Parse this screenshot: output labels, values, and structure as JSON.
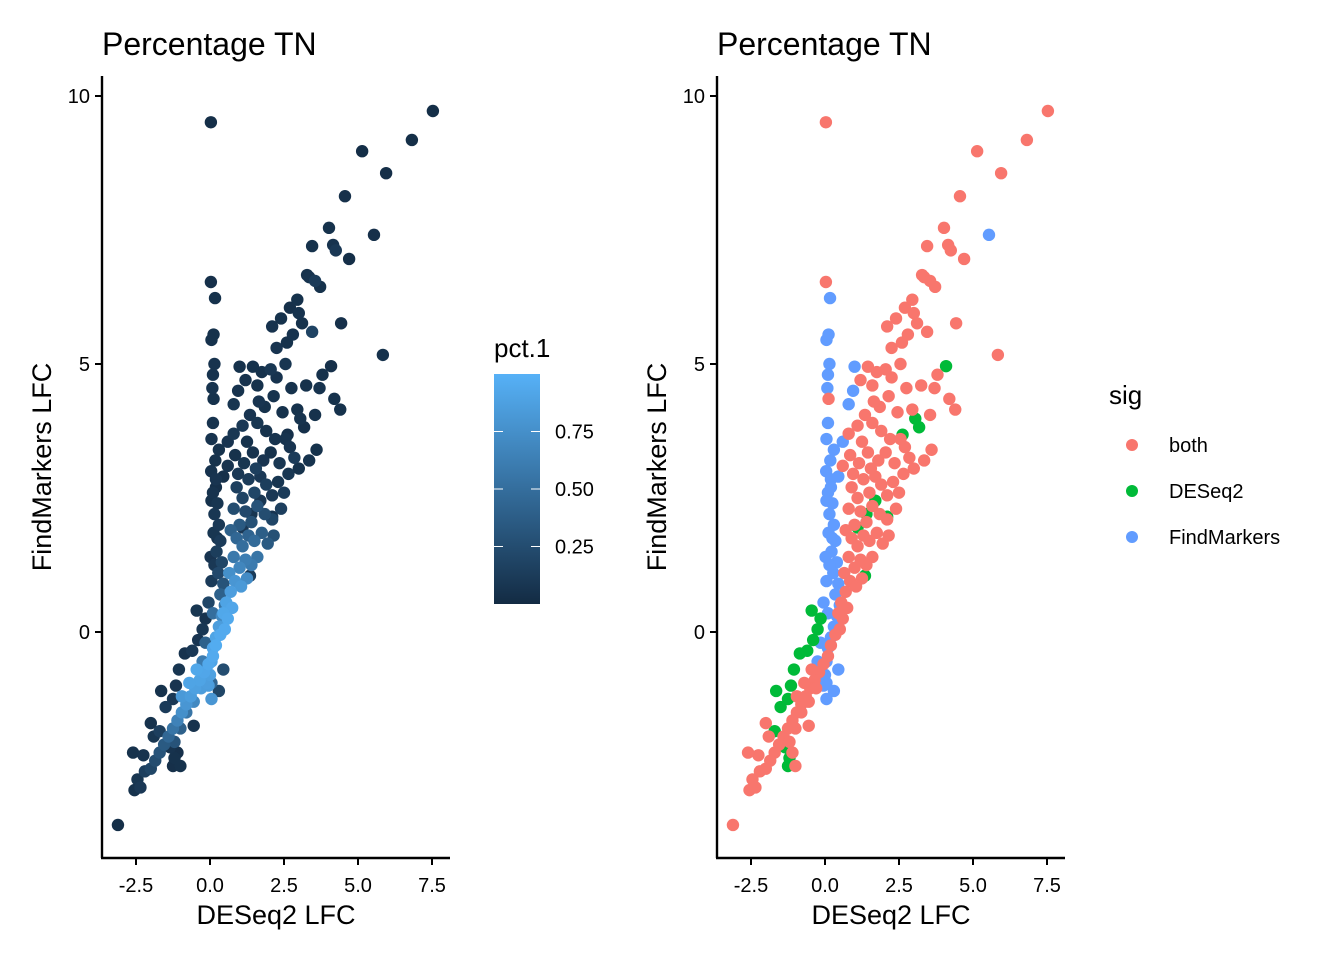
{
  "chart_data": [
    {
      "type": "scatter",
      "title": "Percentage TN",
      "xlabel": "DESeq2 LFC",
      "ylabel": "FindMarkers LFC",
      "xlim": [
        -3.6,
        8.2
      ],
      "ylim": [
        -4.2,
        10.3
      ],
      "xticks": [
        -2.5,
        0.0,
        2.5,
        5.0,
        7.5
      ],
      "xtick_labels": [
        "-2.5",
        "0.0",
        "2.5",
        "5.0",
        "7.5"
      ],
      "yticks": [
        0,
        5,
        10
      ],
      "ytick_labels": [
        "0",
        "5",
        "10"
      ],
      "grid": false,
      "color_by": "pct.1",
      "legend": {
        "type": "colorbar",
        "title": "pct.1",
        "placement": "right",
        "range": [
          0.0,
          1.0
        ],
        "low_color": "#132B43",
        "high_color": "#56B1F7",
        "ticks": [
          0.25,
          0.5,
          0.75
        ],
        "tick_labels": [
          "0.25",
          "0.50",
          "0.75"
        ]
      }
    },
    {
      "type": "scatter",
      "title": "Percentage TN",
      "xlabel": "DESeq2 LFC",
      "ylabel": "FindMarkers LFC",
      "xlim": [
        -3.6,
        8.2
      ],
      "ylim": [
        -4.2,
        10.3
      ],
      "xticks": [
        -2.5,
        0.0,
        2.5,
        5.0,
        7.5
      ],
      "xtick_labels": [
        "-2.5",
        "0.0",
        "2.5",
        "5.0",
        "7.5"
      ],
      "yticks": [
        0,
        5,
        10
      ],
      "ytick_labels": [
        "0",
        "5",
        "10"
      ],
      "grid": false,
      "color_by": "sig",
      "legend": {
        "type": "categorical",
        "title": "sig",
        "placement": "right",
        "entries": [
          {
            "key": "b",
            "label": "both",
            "color": "#F8766D"
          },
          {
            "key": "d",
            "label": "DESeq2",
            "color": "#00BA38"
          },
          {
            "key": "f",
            "label": "FindMarkers",
            "color": "#619CFF"
          }
        ]
      }
    }
  ],
  "points_fields": [
    "x",
    "y",
    "pct1",
    "sig"
  ],
  "points": [
    [
      7.53,
      9.72,
      0.02,
      "b"
    ],
    [
      6.82,
      9.18,
      0.03,
      "b"
    ],
    [
      5.95,
      8.56,
      0.03,
      "b"
    ],
    [
      5.14,
      8.97,
      0.02,
      "b"
    ],
    [
      4.56,
      8.13,
      0.04,
      "b"
    ],
    [
      5.54,
      7.41,
      0.04,
      "f"
    ],
    [
      4.7,
      6.96,
      0.03,
      "b"
    ],
    [
      4.02,
      7.54,
      0.05,
      "b"
    ],
    [
      4.16,
      7.22,
      0.06,
      "b"
    ],
    [
      4.25,
      7.12,
      0.1,
      "b"
    ],
    [
      3.45,
      7.2,
      0.05,
      "b"
    ],
    [
      3.28,
      6.66,
      0.05,
      "b"
    ],
    [
      3.35,
      6.62,
      0.06,
      "b"
    ],
    [
      3.55,
      6.55,
      0.12,
      "b"
    ],
    [
      3.72,
      6.44,
      0.05,
      "b"
    ],
    [
      4.43,
      5.76,
      0.04,
      "b"
    ],
    [
      5.84,
      5.17,
      0.05,
      "b"
    ],
    [
      3.11,
      5.76,
      0.05,
      "b"
    ],
    [
      2.7,
      6.05,
      0.04,
      "b"
    ],
    [
      2.95,
      6.2,
      0.05,
      "b"
    ],
    [
      3.0,
      5.95,
      0.06,
      "b"
    ],
    [
      2.6,
      5.4,
      0.05,
      "b"
    ],
    [
      2.8,
      5.55,
      0.06,
      "b"
    ],
    [
      3.45,
      5.6,
      0.18,
      "b"
    ],
    [
      2.1,
      5.7,
      0.06,
      "b"
    ],
    [
      2.4,
      5.85,
      0.05,
      "b"
    ],
    [
      2.25,
      5.3,
      0.07,
      "b"
    ],
    [
      2.55,
      5.0,
      0.08,
      "b"
    ],
    [
      1.75,
      4.85,
      0.05,
      "b"
    ],
    [
      2.05,
      4.9,
      0.09,
      "b"
    ],
    [
      2.25,
      4.75,
      0.06,
      "b"
    ],
    [
      1.45,
      4.95,
      0.05,
      "b"
    ],
    [
      0.03,
      9.51,
      0.03,
      "b"
    ],
    [
      0.03,
      6.53,
      0.04,
      "b"
    ],
    [
      0.17,
      6.23,
      0.05,
      "f"
    ],
    [
      0.12,
      5.55,
      0.05,
      "f"
    ],
    [
      0.05,
      5.45,
      0.05,
      "f"
    ],
    [
      0.15,
      5.0,
      0.06,
      "f"
    ],
    [
      0.1,
      4.8,
      0.06,
      "f"
    ],
    [
      0.08,
      4.55,
      0.06,
      "f"
    ],
    [
      0.12,
      4.35,
      0.05,
      "b"
    ],
    [
      1.0,
      4.95,
      0.05,
      "f"
    ],
    [
      0.95,
      4.5,
      0.06,
      "f"
    ],
    [
      0.8,
      4.25,
      0.08,
      "f"
    ],
    [
      1.2,
      4.7,
      0.06,
      "b"
    ],
    [
      1.6,
      4.6,
      0.05,
      "b"
    ],
    [
      3.8,
      4.8,
      0.05,
      "b"
    ],
    [
      4.09,
      4.96,
      0.04,
      "d"
    ],
    [
      3.7,
      4.55,
      0.06,
      "b"
    ],
    [
      4.2,
      4.35,
      0.05,
      "b"
    ],
    [
      4.4,
      4.15,
      0.05,
      "b"
    ],
    [
      3.55,
      4.05,
      0.05,
      "b"
    ],
    [
      3.18,
      3.82,
      0.04,
      "d"
    ],
    [
      3.05,
      3.98,
      0.06,
      "d"
    ],
    [
      2.95,
      4.15,
      0.05,
      "b"
    ],
    [
      2.62,
      3.68,
      0.04,
      "d"
    ],
    [
      2.55,
      3.6,
      0.06,
      "b"
    ],
    [
      3.6,
      3.4,
      0.05,
      "b"
    ],
    [
      3.35,
      3.2,
      0.06,
      "b"
    ],
    [
      3.0,
      3.05,
      0.05,
      "b"
    ],
    [
      2.85,
      3.25,
      0.12,
      "b"
    ],
    [
      2.7,
      3.45,
      0.07,
      "b"
    ],
    [
      2.2,
      3.6,
      0.06,
      "b"
    ],
    [
      1.9,
      3.75,
      0.05,
      "b"
    ],
    [
      1.6,
      3.9,
      0.08,
      "b"
    ],
    [
      1.35,
      4.05,
      0.07,
      "b"
    ],
    [
      1.1,
      3.85,
      0.1,
      "b"
    ],
    [
      0.8,
      3.7,
      0.09,
      "b"
    ],
    [
      0.6,
      3.55,
      0.07,
      "f"
    ],
    [
      0.3,
      3.4,
      0.05,
      "f"
    ],
    [
      0.1,
      3.9,
      0.06,
      "f"
    ],
    [
      0.05,
      3.6,
      0.06,
      "f"
    ],
    [
      0.18,
      3.2,
      0.05,
      "f"
    ],
    [
      0.04,
      3.0,
      0.06,
      "f"
    ],
    [
      0.2,
      2.85,
      0.07,
      "f"
    ],
    [
      0.1,
      2.6,
      0.06,
      "f"
    ],
    [
      0.25,
      2.4,
      0.08,
      "f"
    ],
    [
      0.15,
      2.2,
      0.09,
      "f"
    ],
    [
      0.3,
      2.0,
      0.1,
      "f"
    ],
    [
      0.12,
      1.85,
      0.08,
      "f"
    ],
    [
      0.35,
      1.7,
      0.12,
      "f"
    ],
    [
      0.22,
      1.5,
      0.14,
      "f"
    ],
    [
      0.4,
      1.3,
      0.2,
      "f"
    ],
    [
      0.28,
      1.1,
      0.22,
      "f"
    ],
    [
      0.45,
      0.9,
      0.3,
      "f"
    ],
    [
      0.35,
      0.7,
      0.4,
      "f"
    ],
    [
      0.5,
      0.5,
      0.55,
      "f"
    ],
    [
      0.4,
      0.3,
      0.7,
      "f"
    ],
    [
      0.3,
      0.1,
      0.85,
      "f"
    ],
    [
      0.2,
      -0.1,
      0.9,
      "f"
    ],
    [
      0.1,
      -0.3,
      0.92,
      "f"
    ],
    [
      0.05,
      -0.55,
      0.9,
      "f"
    ],
    [
      0.0,
      -0.8,
      0.88,
      "f"
    ],
    [
      -0.05,
      -1.0,
      0.85,
      "f"
    ],
    [
      0.05,
      -1.25,
      0.8,
      "f"
    ],
    [
      -0.1,
      -0.95,
      0.86,
      "f"
    ],
    [
      0.9,
      2.7,
      0.15,
      "b"
    ],
    [
      1.1,
      2.5,
      0.18,
      "b"
    ],
    [
      1.3,
      2.85,
      0.12,
      "b"
    ],
    [
      1.5,
      2.6,
      0.2,
      "b"
    ],
    [
      1.7,
      2.9,
      0.1,
      "b"
    ],
    [
      1.9,
      2.75,
      0.14,
      "b"
    ],
    [
      2.1,
      2.55,
      0.1,
      "b"
    ],
    [
      2.3,
      2.8,
      0.08,
      "b"
    ],
    [
      2.5,
      2.6,
      0.12,
      "b"
    ],
    [
      2.65,
      2.95,
      0.09,
      "b"
    ],
    [
      2.4,
      2.3,
      0.15,
      "b"
    ],
    [
      2.1,
      2.1,
      0.2,
      "b"
    ],
    [
      1.85,
      2.2,
      0.25,
      "b"
    ],
    [
      1.6,
      2.35,
      0.3,
      "b"
    ],
    [
      1.4,
      2.05,
      0.28,
      "b"
    ],
    [
      1.2,
      2.25,
      0.22,
      "b"
    ],
    [
      1.0,
      2.0,
      0.35,
      "b"
    ],
    [
      0.8,
      2.3,
      0.25,
      "b"
    ],
    [
      0.7,
      1.9,
      0.4,
      "b"
    ],
    [
      0.9,
      1.75,
      0.45,
      "b"
    ],
    [
      1.1,
      1.6,
      0.5,
      "b"
    ],
    [
      1.3,
      1.8,
      0.42,
      "b"
    ],
    [
      1.5,
      1.7,
      0.48,
      "b"
    ],
    [
      1.75,
      1.85,
      0.38,
      "b"
    ],
    [
      1.95,
      1.65,
      0.35,
      "b"
    ],
    [
      2.15,
      1.8,
      0.28,
      "b"
    ],
    [
      1.6,
      1.4,
      0.55,
      "b"
    ],
    [
      1.4,
      1.25,
      0.6,
      "b"
    ],
    [
      1.2,
      1.35,
      0.62,
      "b"
    ],
    [
      1.0,
      1.2,
      0.68,
      "b"
    ],
    [
      0.8,
      1.4,
      0.58,
      "b"
    ],
    [
      0.65,
      1.1,
      0.75,
      "b"
    ],
    [
      0.85,
      0.95,
      0.8,
      "b"
    ],
    [
      1.05,
      0.85,
      0.82,
      "b"
    ],
    [
      1.25,
      1.0,
      0.72,
      "b"
    ],
    [
      0.7,
      0.75,
      0.86,
      "b"
    ],
    [
      0.55,
      0.55,
      0.9,
      "b"
    ],
    [
      0.75,
      0.45,
      0.92,
      "b"
    ],
    [
      0.6,
      0.25,
      0.94,
      "b"
    ],
    [
      0.45,
      0.35,
      0.93,
      "b"
    ],
    [
      0.35,
      -0.05,
      0.95,
      "b"
    ],
    [
      0.5,
      0.05,
      0.95,
      "b"
    ],
    [
      0.2,
      -0.25,
      0.96,
      "b"
    ],
    [
      0.1,
      -0.45,
      0.95,
      "b"
    ],
    [
      -0.05,
      -0.6,
      0.94,
      "b"
    ],
    [
      -0.2,
      -0.75,
      0.92,
      "b"
    ],
    [
      -0.35,
      -0.9,
      0.9,
      "b"
    ],
    [
      -0.5,
      -1.05,
      0.88,
      "b"
    ],
    [
      -0.65,
      -1.2,
      0.85,
      "b"
    ],
    [
      -0.8,
      -1.35,
      0.8,
      "b"
    ],
    [
      -0.95,
      -1.5,
      0.75,
      "b"
    ],
    [
      -1.1,
      -1.65,
      0.65,
      "b"
    ],
    [
      -1.25,
      -1.8,
      0.55,
      "b"
    ],
    [
      -1.4,
      -1.95,
      0.45,
      "b"
    ],
    [
      -1.55,
      -2.1,
      0.35,
      "b"
    ],
    [
      -1.7,
      -2.25,
      0.3,
      "b"
    ],
    [
      -1.85,
      -2.4,
      0.25,
      "b"
    ],
    [
      -2.0,
      -2.55,
      0.2,
      "b"
    ],
    [
      -2.2,
      -2.6,
      0.15,
      "b"
    ],
    [
      -2.45,
      -2.75,
      0.08,
      "b"
    ],
    [
      -2.55,
      -2.95,
      0.05,
      "b"
    ],
    [
      -2.35,
      -2.9,
      0.1,
      "b"
    ],
    [
      -2.25,
      -2.3,
      0.06,
      "b"
    ],
    [
      -1.9,
      -1.95,
      0.08,
      "b"
    ],
    [
      -3.11,
      -3.6,
      0.03,
      "b"
    ],
    [
      -2.6,
      -2.25,
      0.05,
      "b"
    ],
    [
      -0.6,
      -0.35,
      0.1,
      "d"
    ],
    [
      -0.85,
      -0.4,
      0.06,
      "d"
    ],
    [
      -1.05,
      -0.7,
      0.08,
      "d"
    ],
    [
      -1.15,
      -1.0,
      0.07,
      "d"
    ],
    [
      -1.25,
      -1.25,
      0.1,
      "d"
    ],
    [
      -1.65,
      -1.1,
      0.05,
      "d"
    ],
    [
      -1.5,
      -1.4,
      0.12,
      "d"
    ],
    [
      -1.7,
      -1.85,
      0.15,
      "d"
    ],
    [
      -1.35,
      -2.15,
      0.06,
      "d"
    ],
    [
      -1.2,
      -2.35,
      0.05,
      "d"
    ],
    [
      -1.25,
      -2.5,
      0.04,
      "d"
    ],
    [
      -0.4,
      -0.15,
      0.07,
      "d"
    ],
    [
      -0.25,
      0.05,
      0.09,
      "d"
    ],
    [
      -0.15,
      0.25,
      0.06,
      "d"
    ],
    [
      -0.45,
      0.4,
      0.08,
      "d"
    ],
    [
      1.1,
      1.95,
      0.1,
      "d"
    ],
    [
      1.4,
      2.2,
      0.08,
      "d"
    ],
    [
      1.7,
      2.45,
      0.09,
      "d"
    ],
    [
      2.1,
      2.15,
      0.07,
      "d"
    ],
    [
      1.35,
      1.05,
      0.12,
      "d"
    ],
    [
      0.45,
      2.9,
      0.04,
      "f"
    ],
    [
      0.2,
      2.7,
      0.04,
      "f"
    ],
    [
      0.05,
      2.45,
      0.05,
      "f"
    ],
    [
      0.25,
      1.75,
      0.06,
      "f"
    ],
    [
      0.02,
      1.4,
      0.07,
      "f"
    ],
    [
      0.15,
      1.25,
      0.1,
      "f"
    ],
    [
      0.05,
      0.95,
      0.12,
      "f"
    ],
    [
      -0.05,
      0.55,
      0.2,
      "f"
    ],
    [
      0.1,
      0.35,
      0.5,
      "f"
    ],
    [
      -0.15,
      -0.2,
      0.4,
      "f"
    ],
    [
      -0.25,
      -0.55,
      0.6,
      "f"
    ],
    [
      0.45,
      -0.7,
      0.25,
      "f"
    ],
    [
      0.3,
      -1.1,
      0.2,
      "f"
    ],
    [
      0.05,
      -0.95,
      0.45,
      "f"
    ],
    [
      0.6,
      3.1,
      0.06,
      "b"
    ],
    [
      0.85,
      3.3,
      0.05,
      "b"
    ],
    [
      1.15,
      3.15,
      0.08,
      "b"
    ],
    [
      1.45,
      3.35,
      0.06,
      "b"
    ],
    [
      1.8,
      3.2,
      0.07,
      "b"
    ],
    [
      2.05,
      3.35,
      0.05,
      "b"
    ],
    [
      2.35,
      3.15,
      0.09,
      "b"
    ],
    [
      1.25,
      3.55,
      0.05,
      "b"
    ],
    [
      1.55,
      3.05,
      0.15,
      "b"
    ],
    [
      0.95,
      2.95,
      0.1,
      "b"
    ],
    [
      1.85,
      4.2,
      0.05,
      "b"
    ],
    [
      2.15,
      4.4,
      0.06,
      "b"
    ],
    [
      2.45,
      4.1,
      0.05,
      "b"
    ],
    [
      1.65,
      4.3,
      0.07,
      "b"
    ],
    [
      2.75,
      4.55,
      0.05,
      "b"
    ],
    [
      3.25,
      4.6,
      0.05,
      "b"
    ],
    [
      -0.8,
      -1.5,
      0.55,
      "b"
    ],
    [
      -0.55,
      -1.3,
      0.7,
      "b"
    ],
    [
      -0.3,
      -1.05,
      0.85,
      "b"
    ],
    [
      -1.0,
      -1.8,
      0.4,
      "b"
    ],
    [
      -1.2,
      -2.05,
      0.3,
      "b"
    ],
    [
      -0.7,
      -0.95,
      0.9,
      "b"
    ],
    [
      -0.45,
      -0.7,
      0.93,
      "b"
    ],
    [
      -0.95,
      -1.2,
      0.82,
      "b"
    ],
    [
      -1.1,
      -2.25,
      0.04,
      "b"
    ],
    [
      -1.0,
      -2.5,
      0.05,
      "b"
    ],
    [
      -0.55,
      -1.75,
      0.06,
      "b"
    ],
    [
      -2.0,
      -1.7,
      0.05,
      "b"
    ]
  ]
}
